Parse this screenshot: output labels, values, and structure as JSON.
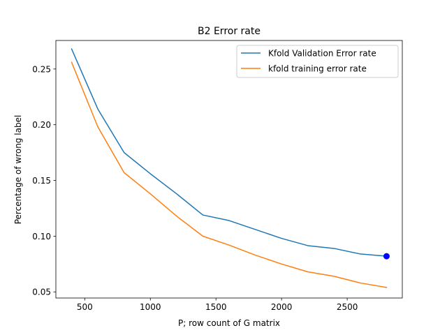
{
  "chart_data": {
    "type": "line",
    "title": "B2 Error rate",
    "xlabel": "P; row count of G matrix",
    "ylabel": "Percentage of wrong label",
    "xlim": [
      280,
      2920
    ],
    "ylim": [
      0.0445,
      0.2756
    ],
    "xticks": [
      500,
      1000,
      1500,
      2000,
      2500
    ],
    "xtick_labels": [
      "500",
      "1000",
      "1500",
      "2000",
      "2500"
    ],
    "yticks": [
      0.05,
      0.1,
      0.15,
      0.2,
      0.25
    ],
    "ytick_labels": [
      "0.05",
      "0.10",
      "0.15",
      "0.20",
      "0.25"
    ],
    "grid": false,
    "legend_position": "top-right",
    "x": [
      400,
      600,
      800,
      1000,
      1200,
      1400,
      1600,
      1800,
      2000,
      2200,
      2400,
      2600,
      2800
    ],
    "series": [
      {
        "name": "Kfold Validation Error rate",
        "color": "#1f77b4",
        "values": [
          0.268,
          0.214,
          0.175,
          0.156,
          0.138,
          0.119,
          0.114,
          0.106,
          0.098,
          0.0915,
          0.089,
          0.084,
          0.082
        ]
      },
      {
        "name": "kfold training error rate",
        "color": "#ff7f0e",
        "values": [
          0.256,
          0.198,
          0.157,
          0.138,
          0.118,
          0.1,
          0.092,
          0.083,
          0.075,
          0.068,
          0.064,
          0.058,
          0.054
        ]
      }
    ],
    "markers": [
      {
        "x": 2800,
        "y": 0.082,
        "color": "#0000ff"
      }
    ]
  }
}
